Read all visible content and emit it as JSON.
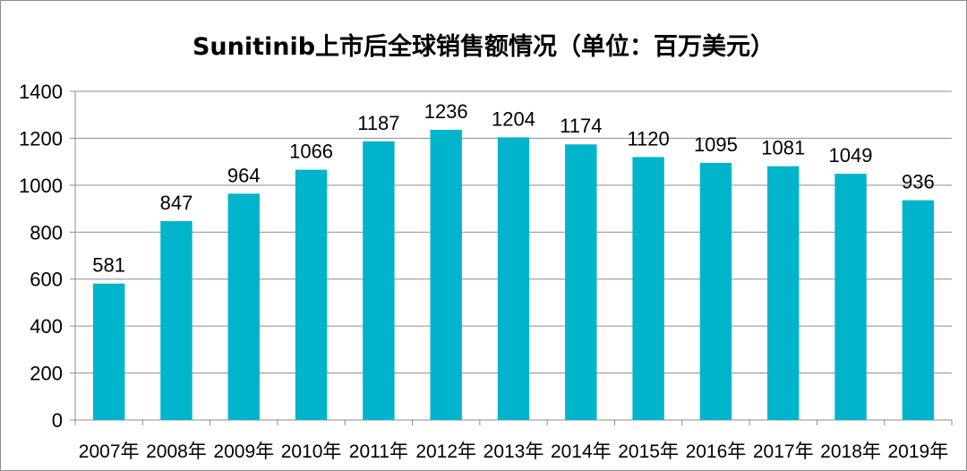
{
  "chart_data": {
    "type": "bar",
    "title": "Sunitinib上市后全球销售额情况（单位：百万美元）",
    "categories": [
      "2007年",
      "2008年",
      "2009年",
      "2010年",
      "2011年",
      "2012年",
      "2013年",
      "2014年",
      "2015年",
      "2016年",
      "2017年",
      "2018年",
      "2019年"
    ],
    "values": [
      581,
      847,
      964,
      1066,
      1187,
      1236,
      1204,
      1174,
      1120,
      1095,
      1081,
      1049,
      936
    ],
    "ylim": [
      0,
      1400
    ],
    "yticks": [
      0,
      200,
      400,
      600,
      800,
      1000,
      1200,
      1400
    ],
    "grid": true,
    "legend": "none",
    "bar_color": "#00B4CC"
  }
}
